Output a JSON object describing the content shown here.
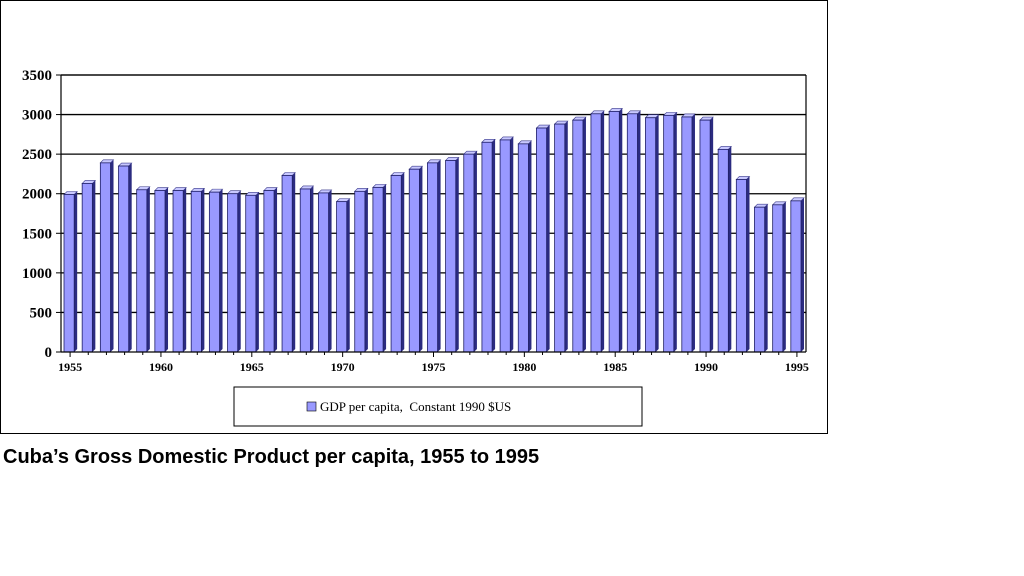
{
  "caption": "Cuba’s Gross Domestic Product per capita, 1955 to 1995",
  "colors": {
    "bar_face": "#9999ff",
    "bar_side": "#2b2b80",
    "bar_top": "#c8c8ff",
    "gridline": "#000000",
    "axis": "#000000"
  },
  "chart_data": {
    "type": "bar",
    "title": "",
    "xlabel": "",
    "ylabel": "",
    "ylim": [
      0,
      3500
    ],
    "yticks": [
      0,
      500,
      1000,
      1500,
      2000,
      2500,
      3000,
      3500
    ],
    "grid": true,
    "legend_position": "bottom",
    "x_tick_labels": [
      "1955",
      "1960",
      "1965",
      "1970",
      "1975",
      "1980",
      "1985",
      "1990",
      "1995"
    ],
    "categories": [
      1955,
      1956,
      1957,
      1958,
      1959,
      1960,
      1961,
      1962,
      1963,
      1964,
      1965,
      1966,
      1967,
      1968,
      1969,
      1970,
      1971,
      1972,
      1973,
      1974,
      1975,
      1976,
      1977,
      1978,
      1979,
      1980,
      1981,
      1982,
      1983,
      1984,
      1985,
      1986,
      1987,
      1988,
      1989,
      1990,
      1991,
      1992,
      1993,
      1994,
      1995
    ],
    "series": [
      {
        "name": "GDP per capita,  Constant 1990 $US",
        "values": [
          1990,
          2130,
          2390,
          2350,
          2050,
          2040,
          2040,
          2030,
          2020,
          2000,
          1980,
          2040,
          2230,
          2060,
          2010,
          1900,
          2030,
          2080,
          2230,
          2310,
          2390,
          2420,
          2500,
          2650,
          2680,
          2630,
          2830,
          2880,
          2930,
          3010,
          3040,
          3010,
          2960,
          2990,
          2970,
          2930,
          2560,
          2180,
          1830,
          1860,
          1910
        ]
      }
    ]
  }
}
